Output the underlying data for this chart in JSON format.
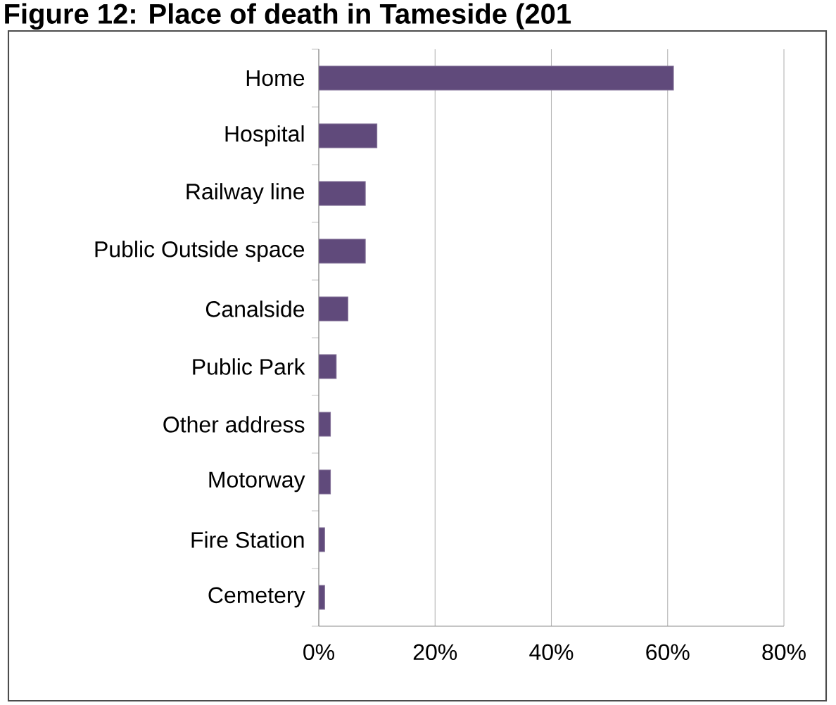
{
  "chart_data": {
    "type": "bar",
    "orientation": "horizontal",
    "title": "Figure 12: Place of death in Tameside (201",
    "categories": [
      "Home",
      "Hospital",
      "Railway line",
      "Public Outside space",
      "Canalside",
      "Public Park",
      "Other address",
      "Motorway",
      "Fire Station",
      "Cemetery"
    ],
    "values": [
      61,
      10,
      8,
      8,
      5,
      3,
      2,
      2,
      1,
      1
    ],
    "color": "#604a7b",
    "xlim": [
      0,
      80
    ],
    "xticks": [
      {
        "value": 0,
        "label": "0%"
      },
      {
        "value": 20,
        "label": "20%"
      },
      {
        "value": 40,
        "label": "40%"
      },
      {
        "value": 60,
        "label": "60%"
      },
      {
        "value": 80,
        "label": "80%"
      }
    ],
    "grid": "x"
  }
}
